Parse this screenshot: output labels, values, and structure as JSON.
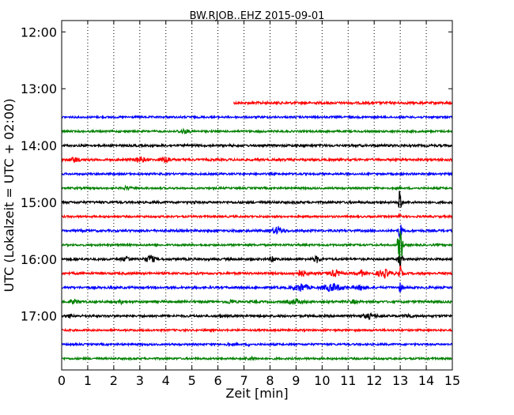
{
  "chart_data": {
    "type": "line",
    "title": "BW.RJOB..EHZ 2015-09-01",
    "xlabel": "Zeit  [min]",
    "ylabel": "UTC (Lokalzeit = UTC + 02:00)",
    "xlim": [
      0,
      15
    ],
    "ylim_hours": [
      11.8,
      17.95
    ],
    "x_ticks": [
      "0",
      "1",
      "2",
      "3",
      "4",
      "5",
      "6",
      "7",
      "8",
      "9",
      "10",
      "11",
      "12",
      "13",
      "14",
      "15"
    ],
    "y_ticks": [
      {
        "value": 12.0,
        "label": "12:00"
      },
      {
        "value": 13.0,
        "label": "13:00"
      },
      {
        "value": 14.0,
        "label": "14:00"
      },
      {
        "value": 15.0,
        "label": "15:00"
      },
      {
        "value": 16.0,
        "label": "16:00"
      },
      {
        "value": 17.0,
        "label": "17:00"
      }
    ],
    "grid": "vertical-dotted",
    "traces": [
      {
        "hour": 13.25,
        "color": "#ff0000",
        "start_min": 6.6,
        "end_min": 15,
        "amp": 1.5,
        "events": []
      },
      {
        "hour": 13.5,
        "color": "#0000ff",
        "start_min": 0,
        "end_min": 15,
        "amp": 1.2,
        "events": []
      },
      {
        "hour": 13.75,
        "color": "#008000",
        "start_min": 0,
        "end_min": 15,
        "amp": 1.2,
        "events": [
          {
            "at": 4.7,
            "amp": 2.5,
            "width": 0.5
          }
        ]
      },
      {
        "hour": 14.0,
        "color": "#000000",
        "start_min": 0,
        "end_min": 15,
        "amp": 1.4,
        "events": []
      },
      {
        "hour": 14.25,
        "color": "#ff0000",
        "start_min": 0,
        "end_min": 15,
        "amp": 1.4,
        "events": [
          {
            "at": 0.5,
            "amp": 3,
            "width": 0.4
          },
          {
            "at": 3.0,
            "amp": 4,
            "width": 0.4
          },
          {
            "at": 4.0,
            "amp": 4,
            "width": 0.4
          }
        ]
      },
      {
        "hour": 14.5,
        "color": "#0000ff",
        "start_min": 0,
        "end_min": 15,
        "amp": 1.2,
        "events": []
      },
      {
        "hour": 14.75,
        "color": "#008000",
        "start_min": 0,
        "end_min": 15,
        "amp": 1.2,
        "events": [
          {
            "at": 2.5,
            "amp": 2,
            "width": 0.3
          }
        ]
      },
      {
        "hour": 15.0,
        "color": "#000000",
        "start_min": 0,
        "end_min": 15,
        "amp": 1.4,
        "events": [
          {
            "at": 5.1,
            "amp": 3,
            "width": 0.1
          },
          {
            "at": 13.0,
            "amp": 35,
            "width": 0.1
          }
        ]
      },
      {
        "hour": 15.25,
        "color": "#ff0000",
        "start_min": 0,
        "end_min": 15,
        "amp": 1.2,
        "events": [
          {
            "at": 13.0,
            "amp": 8,
            "width": 0.1
          }
        ]
      },
      {
        "hour": 15.5,
        "color": "#0000ff",
        "start_min": 0,
        "end_min": 15,
        "amp": 1.4,
        "events": [
          {
            "at": 8.3,
            "amp": 5,
            "width": 0.5
          },
          {
            "at": 13.0,
            "amp": 14,
            "width": 0.15
          }
        ]
      },
      {
        "hour": 15.75,
        "color": "#008000",
        "start_min": 0,
        "end_min": 15,
        "amp": 1.2,
        "events": [
          {
            "at": 13.0,
            "amp": 30,
            "width": 0.2
          }
        ]
      },
      {
        "hour": 16.0,
        "color": "#000000",
        "start_min": 0,
        "end_min": 15,
        "amp": 1.4,
        "events": [
          {
            "at": 2.5,
            "amp": 3,
            "width": 0.4
          },
          {
            "at": 3.4,
            "amp": 5,
            "width": 0.4
          },
          {
            "at": 8.1,
            "amp": 5,
            "width": 0.2
          },
          {
            "at": 9.8,
            "amp": 4,
            "width": 0.3
          },
          {
            "at": 13.0,
            "amp": 12,
            "width": 0.15
          }
        ]
      },
      {
        "hour": 16.25,
        "color": "#ff0000",
        "start_min": 0,
        "end_min": 15,
        "amp": 1.4,
        "events": [
          {
            "at": 9.2,
            "amp": 4,
            "width": 0.5
          },
          {
            "at": 10.5,
            "amp": 4,
            "width": 0.5
          },
          {
            "at": 11.5,
            "amp": 4,
            "width": 0.3
          },
          {
            "at": 12.4,
            "amp": 5,
            "width": 0.6
          },
          {
            "at": 13.0,
            "amp": 10,
            "width": 0.15
          }
        ]
      },
      {
        "hour": 16.5,
        "color": "#0000ff",
        "start_min": 0,
        "end_min": 15,
        "amp": 1.4,
        "events": [
          {
            "at": 9.2,
            "amp": 5,
            "width": 0.6
          },
          {
            "at": 10.4,
            "amp": 5,
            "width": 0.8
          },
          {
            "at": 11.5,
            "amp": 3,
            "width": 0.5
          },
          {
            "at": 13.0,
            "amp": 6,
            "width": 0.15
          }
        ]
      },
      {
        "hour": 16.75,
        "color": "#008000",
        "start_min": 0,
        "end_min": 15,
        "amp": 1.4,
        "events": [
          {
            "at": 0.5,
            "amp": 2.5,
            "width": 0.4
          },
          {
            "at": 2.3,
            "amp": 2,
            "width": 0.3
          },
          {
            "at": 6.5,
            "amp": 2.5,
            "width": 0.3
          },
          {
            "at": 9.0,
            "amp": 3,
            "width": 0.6
          },
          {
            "at": 11.2,
            "amp": 2,
            "width": 0.3
          }
        ]
      },
      {
        "hour": 17.0,
        "color": "#000000",
        "start_min": 0,
        "end_min": 15,
        "amp": 1.4,
        "events": [
          {
            "at": 0.3,
            "amp": 3,
            "width": 0.1
          },
          {
            "at": 6.1,
            "amp": 2,
            "width": 0.1
          },
          {
            "at": 11.8,
            "amp": 3,
            "width": 0.6
          },
          {
            "at": 13.3,
            "amp": 2.5,
            "width": 0.3
          }
        ]
      },
      {
        "hour": 17.25,
        "color": "#ff0000",
        "start_min": 0,
        "end_min": 15,
        "amp": 1.2,
        "events": []
      },
      {
        "hour": 17.5,
        "color": "#0000ff",
        "start_min": 0,
        "end_min": 15,
        "amp": 1.2,
        "events": [
          {
            "at": 6.4,
            "amp": 3,
            "width": 0.1
          },
          {
            "at": 7.2,
            "amp": 2,
            "width": 0.1
          }
        ]
      },
      {
        "hour": 17.75,
        "color": "#008000",
        "start_min": 0,
        "end_min": 15,
        "amp": 1.2,
        "events": [
          {
            "at": 7.3,
            "amp": 2,
            "width": 0.4
          }
        ]
      }
    ]
  }
}
